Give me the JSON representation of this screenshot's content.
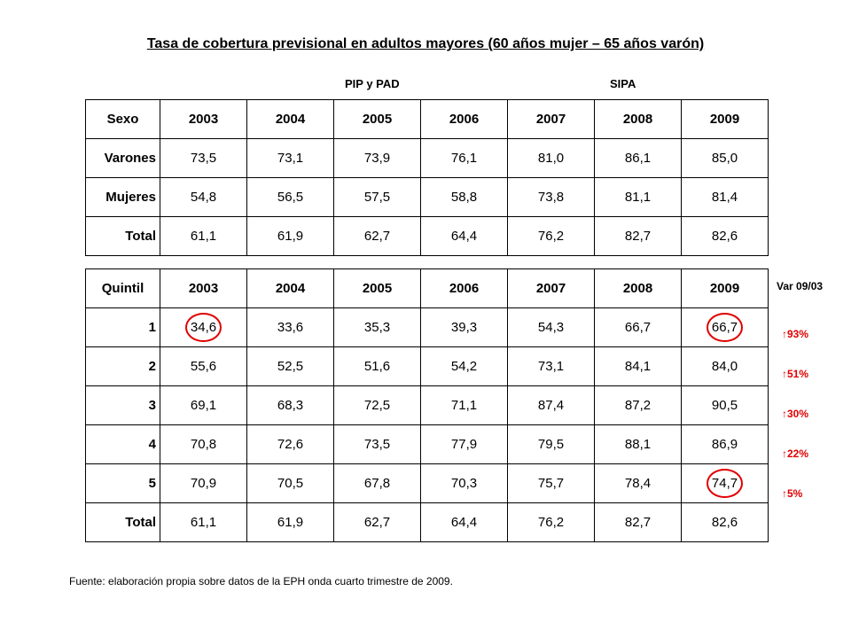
{
  "title": "Tasa de cobertura previsional en adultos mayores (60 años mujer – 65 años varón)",
  "group_labels": {
    "left": "PIP y PAD",
    "right": "SIPA"
  },
  "table_sexo": {
    "headers": [
      "Sexo",
      "2003",
      "2004",
      "2005",
      "2006",
      "2007",
      "2008",
      "2009"
    ],
    "rows": [
      {
        "label": "Varones",
        "values": [
          "73,5",
          "73,1",
          "73,9",
          "76,1",
          "81,0",
          "86,1",
          "85,0"
        ]
      },
      {
        "label": "Mujeres",
        "values": [
          "54,8",
          "56,5",
          "57,5",
          "58,8",
          "73,8",
          "81,1",
          "81,4"
        ]
      },
      {
        "label": "Total",
        "values": [
          "61,1",
          "61,9",
          "62,7",
          "64,4",
          "76,2",
          "82,7",
          "82,6"
        ]
      }
    ]
  },
  "table_quintil": {
    "headers": [
      "Quintil",
      "2003",
      "2004",
      "2005",
      "2006",
      "2007",
      "2008",
      "2009"
    ],
    "rows": [
      {
        "label": "1",
        "values": [
          "34,6",
          "33,6",
          "35,3",
          "39,3",
          "54,3",
          "66,7",
          "66,7"
        ]
      },
      {
        "label": "2",
        "values": [
          "55,6",
          "52,5",
          "51,6",
          "54,2",
          "73,1",
          "84,1",
          "84,0"
        ]
      },
      {
        "label": "3",
        "values": [
          "69,1",
          "68,3",
          "72,5",
          "71,1",
          "87,4",
          "87,2",
          "90,5"
        ]
      },
      {
        "label": "4",
        "values": [
          "70,8",
          "72,6",
          "73,5",
          "77,9",
          "79,5",
          "88,1",
          "86,9"
        ]
      },
      {
        "label": "5",
        "values": [
          "70,9",
          "70,5",
          "67,8",
          "70,3",
          "75,7",
          "78,4",
          "74,7"
        ]
      },
      {
        "label": "Total",
        "values": [
          "61,1",
          "61,9",
          "62,7",
          "64,4",
          "76,2",
          "82,7",
          "82,6"
        ]
      }
    ]
  },
  "variation": {
    "label": "Var  09/03",
    "items": [
      "↑93%",
      "↑51%",
      "↑30%",
      "↑22%",
      "↑5%"
    ],
    "color": "#e00000"
  },
  "source": "Fuente: elaboración propia sobre datos de la EPH onda cuarto trimestre de 2009."
}
